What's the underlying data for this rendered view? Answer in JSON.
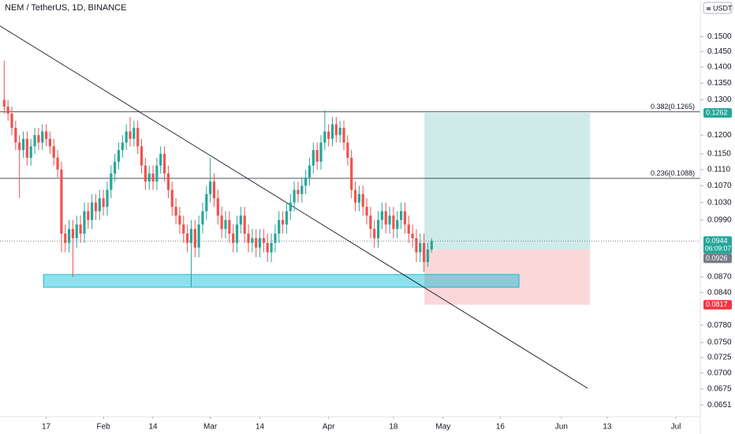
{
  "chart_data": {
    "type": "candlestick",
    "title": "NEM / TetherUS, 1D, BINANCE",
    "currency": "USDT",
    "log_scale": true,
    "grid": false,
    "up_color": "#26a69a",
    "down_color": "#ef5350",
    "xlim": [
      4.9,
      188.4
    ],
    "ylim": [
      0.0634,
      0.163
    ],
    "xticks": [
      17,
      {
        "value": 32,
        "label": "Feb"
      },
      {
        "value": 45,
        "label": "14"
      },
      {
        "value": 60,
        "label": "Mar"
      },
      {
        "value": 73,
        "label": "14"
      },
      {
        "value": 91,
        "label": "Apr"
      },
      {
        "value": 108,
        "label": "18"
      },
      {
        "value": 121,
        "label": "May"
      },
      {
        "value": 136,
        "label": "16"
      },
      {
        "value": 152,
        "label": "Jun"
      },
      {
        "value": 164,
        "label": "13"
      },
      {
        "value": 182,
        "label": "Jul"
      }
    ],
    "yticks": [
      {
        "value": 0.15,
        "label": "0.1500"
      },
      {
        "value": 0.145,
        "label": "0.1450"
      },
      {
        "value": 0.14,
        "label": "0.1400"
      },
      {
        "value": 0.135,
        "label": "0.1350"
      },
      {
        "value": 0.13,
        "label": "0.1300"
      },
      {
        "value": 0.12,
        "label": "0.1200"
      },
      {
        "value": 0.115,
        "label": "0.1150"
      },
      {
        "value": 0.111,
        "label": "0.1110"
      },
      {
        "value": 0.107,
        "label": "0.1070"
      },
      {
        "value": 0.103,
        "label": "0.1030"
      },
      {
        "value": 0.099,
        "label": "0.0990"
      },
      {
        "value": 0.087,
        "label": "0.0870"
      },
      {
        "value": 0.084,
        "label": "0.0840"
      },
      {
        "value": 0.078,
        "label": "0.0780"
      },
      {
        "value": 0.075,
        "label": "0.0750"
      },
      {
        "value": 0.0725,
        "label": "0.0725"
      },
      {
        "value": 0.07,
        "label": "0.0700"
      },
      {
        "value": 0.0675,
        "label": "0.0675"
      },
      {
        "value": 0.0651,
        "label": "0.0651"
      }
    ],
    "x": [
      6,
      7,
      8,
      9,
      10,
      11,
      12,
      13,
      14,
      15,
      16,
      17,
      18,
      19,
      20,
      21,
      22,
      23,
      24,
      25,
      26,
      27,
      28,
      29,
      30,
      31,
      32,
      33,
      34,
      35,
      36,
      37,
      38,
      39,
      40,
      41,
      42,
      43,
      44,
      45,
      46,
      47,
      48,
      49,
      50,
      51,
      52,
      53,
      54,
      55,
      56,
      57,
      58,
      59,
      60,
      61,
      62,
      63,
      64,
      65,
      66,
      67,
      68,
      69,
      70,
      71,
      72,
      73,
      74,
      75,
      76,
      77,
      78,
      79,
      80,
      81,
      82,
      83,
      84,
      85,
      86,
      87,
      88,
      89,
      90,
      91,
      92,
      93,
      94,
      95,
      96,
      97,
      98,
      99,
      100,
      101,
      102,
      103,
      104,
      105,
      106,
      107,
      108,
      109,
      110,
      111,
      112,
      113,
      114,
      115,
      116,
      117,
      118
    ],
    "open": [
      0.13,
      0.128,
      0.126,
      0.122,
      0.118,
      0.116,
      0.119,
      0.114,
      0.117,
      0.12,
      0.118,
      0.121,
      0.119,
      0.117,
      0.114,
      0.111,
      0.096,
      0.094,
      0.097,
      0.095,
      0.098,
      0.096,
      0.101,
      0.099,
      0.103,
      0.101,
      0.104,
      0.102,
      0.106,
      0.11,
      0.113,
      0.116,
      0.118,
      0.121,
      0.119,
      0.122,
      0.117,
      0.112,
      0.108,
      0.11,
      0.108,
      0.112,
      0.115,
      0.11,
      0.106,
      0.102,
      0.1,
      0.098,
      0.096,
      0.094,
      0.097,
      0.093,
      0.098,
      0.101,
      0.105,
      0.108,
      0.104,
      0.1,
      0.097,
      0.099,
      0.096,
      0.094,
      0.098,
      0.1,
      0.096,
      0.094,
      0.095,
      0.093,
      0.095,
      0.094,
      0.092,
      0.094,
      0.096,
      0.099,
      0.098,
      0.101,
      0.103,
      0.106,
      0.105,
      0.107,
      0.109,
      0.112,
      0.116,
      0.113,
      0.118,
      0.121,
      0.119,
      0.123,
      0.12,
      0.122,
      0.118,
      0.114,
      0.106,
      0.103,
      0.105,
      0.102,
      0.1,
      0.097,
      0.095,
      0.099,
      0.101,
      0.098,
      0.1,
      0.097,
      0.099,
      0.101,
      0.098,
      0.096,
      0.095,
      0.092,
      0.094,
      0.09,
      0.0926
    ],
    "high": [
      0.142,
      0.13,
      0.128,
      0.124,
      0.12,
      0.121,
      0.121,
      0.119,
      0.122,
      0.122,
      0.123,
      0.123,
      0.121,
      0.119,
      0.116,
      0.113,
      0.098,
      0.099,
      0.099,
      0.1,
      0.1,
      0.103,
      0.103,
      0.105,
      0.105,
      0.106,
      0.106,
      0.108,
      0.112,
      0.115,
      0.118,
      0.12,
      0.123,
      0.125,
      0.124,
      0.124,
      0.119,
      0.114,
      0.112,
      0.112,
      0.114,
      0.117,
      0.117,
      0.112,
      0.108,
      0.104,
      0.102,
      0.1,
      0.098,
      0.099,
      0.099,
      0.1,
      0.103,
      0.107,
      0.114,
      0.11,
      0.106,
      0.102,
      0.101,
      0.101,
      0.098,
      0.1,
      0.102,
      0.102,
      0.098,
      0.097,
      0.097,
      0.097,
      0.097,
      0.096,
      0.096,
      0.098,
      0.101,
      0.101,
      0.103,
      0.105,
      0.108,
      0.108,
      0.109,
      0.111,
      0.114,
      0.118,
      0.118,
      0.12,
      0.127,
      0.123,
      0.125,
      0.125,
      0.124,
      0.124,
      0.12,
      0.116,
      0.108,
      0.107,
      0.107,
      0.104,
      0.102,
      0.099,
      0.101,
      0.103,
      0.103,
      0.102,
      0.102,
      0.101,
      0.103,
      0.103,
      0.1,
      0.098,
      0.097,
      0.096,
      0.096,
      0.094,
      0.095
    ],
    "low": [
      0.126,
      0.124,
      0.12,
      0.116,
      0.104,
      0.114,
      0.112,
      0.112,
      0.115,
      0.116,
      0.116,
      0.117,
      0.115,
      0.112,
      0.109,
      0.092,
      0.092,
      0.092,
      0.087,
      0.093,
      0.094,
      0.094,
      0.097,
      0.097,
      0.099,
      0.099,
      0.1,
      0.1,
      0.104,
      0.108,
      0.111,
      0.114,
      0.116,
      0.117,
      0.117,
      0.115,
      0.11,
      0.106,
      0.106,
      0.106,
      0.106,
      0.11,
      0.108,
      0.104,
      0.1,
      0.098,
      0.096,
      0.094,
      0.092,
      0.085,
      0.091,
      0.091,
      0.096,
      0.099,
      0.103,
      0.102,
      0.098,
      0.095,
      0.095,
      0.094,
      0.092,
      0.092,
      0.096,
      0.094,
      0.092,
      0.092,
      0.091,
      0.091,
      0.092,
      0.09,
      0.09,
      0.092,
      0.094,
      0.096,
      0.096,
      0.099,
      0.101,
      0.103,
      0.103,
      0.105,
      0.107,
      0.11,
      0.111,
      0.111,
      0.116,
      0.117,
      0.117,
      0.118,
      0.118,
      0.116,
      0.112,
      0.104,
      0.101,
      0.101,
      0.1,
      0.098,
      0.095,
      0.093,
      0.093,
      0.097,
      0.096,
      0.096,
      0.095,
      0.095,
      0.097,
      0.096,
      0.094,
      0.093,
      0.09,
      0.09,
      0.088,
      0.089,
      0.092
    ],
    "close": [
      0.128,
      0.126,
      0.122,
      0.118,
      0.116,
      0.119,
      0.114,
      0.117,
      0.12,
      0.118,
      0.121,
      0.119,
      0.117,
      0.114,
      0.111,
      0.096,
      0.094,
      0.097,
      0.095,
      0.098,
      0.096,
      0.101,
      0.099,
      0.103,
      0.101,
      0.104,
      0.102,
      0.106,
      0.11,
      0.113,
      0.116,
      0.118,
      0.121,
      0.119,
      0.122,
      0.117,
      0.112,
      0.108,
      0.11,
      0.108,
      0.112,
      0.115,
      0.11,
      0.106,
      0.102,
      0.1,
      0.098,
      0.096,
      0.094,
      0.097,
      0.093,
      0.098,
      0.101,
      0.105,
      0.108,
      0.104,
      0.1,
      0.097,
      0.099,
      0.096,
      0.094,
      0.098,
      0.1,
      0.096,
      0.094,
      0.095,
      0.093,
      0.095,
      0.094,
      0.092,
      0.094,
      0.096,
      0.099,
      0.098,
      0.101,
      0.103,
      0.106,
      0.105,
      0.107,
      0.109,
      0.112,
      0.116,
      0.113,
      0.118,
      0.121,
      0.119,
      0.123,
      0.12,
      0.122,
      0.118,
      0.114,
      0.106,
      0.103,
      0.105,
      0.102,
      0.1,
      0.097,
      0.095,
      0.099,
      0.101,
      0.098,
      0.1,
      0.097,
      0.099,
      0.101,
      0.098,
      0.096,
      0.095,
      0.092,
      0.094,
      0.09,
      0.0926,
      0.0944
    ],
    "levels": [
      {
        "value": 0.1265,
        "label": "0.382(0.1265)"
      },
      {
        "value": 0.1088,
        "label": "0.236(0.1088)"
      }
    ],
    "trendline": {
      "x": [
        4.9,
        158.9
      ],
      "y": [
        0.1537,
        0.0676
      ]
    },
    "zone": {
      "x": [
        16.3,
        140.9
      ],
      "y": [
        0.0875,
        0.085
      ]
    },
    "position": {
      "x": [
        116.1,
        159.5
      ],
      "entry": {
        "value": 0.0926,
        "label": "0.0926"
      },
      "target": {
        "value": 0.1262,
        "label": "0.1262"
      },
      "stop": {
        "value": 0.0817,
        "label": "0.0817"
      }
    },
    "last_price": {
      "value": 0.0944,
      "label": "0.0944",
      "countdown": "06:09:07"
    }
  }
}
